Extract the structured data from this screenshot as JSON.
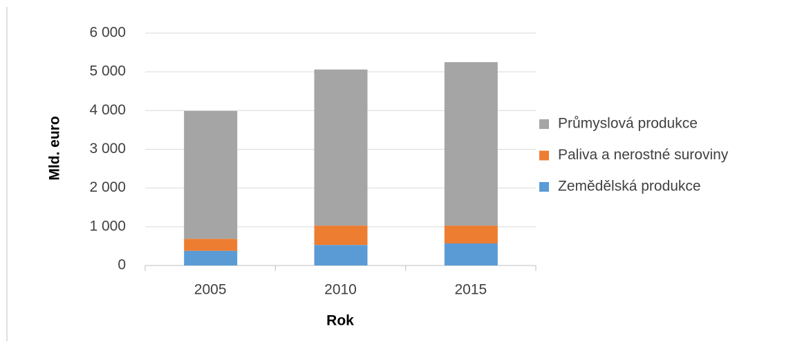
{
  "chart_data": {
    "type": "stacked_bar",
    "y_label": "Mld. euro",
    "x_label": "Rok",
    "categories": [
      "2005",
      "2010",
      "2015"
    ],
    "series": [
      {
        "name": "Zemědělská produkce",
        "color": "#5b9bd5",
        "values": [
          380,
          530,
          570
        ]
      },
      {
        "name": "Paliva a nerostné suroviny",
        "color": "#ed7d31",
        "values": [
          310,
          500,
          460
        ]
      },
      {
        "name": "Průmyslová produkce",
        "color": "#a5a5a5",
        "values": [
          3300,
          4030,
          4220
        ]
      }
    ],
    "ylim": [
      0,
      6000
    ],
    "yticks": [
      0,
      {
        "value": 1000,
        "label": "1 000"
      },
      {
        "value": 2000,
        "label": "2 000"
      },
      {
        "value": 3000,
        "label": "3 000"
      },
      {
        "value": 4000,
        "label": "4 000"
      },
      {
        "value": 5000,
        "label": "5 000"
      },
      {
        "value": 6000,
        "label": "6 000"
      }
    ],
    "grid": true,
    "legend": "right"
  }
}
